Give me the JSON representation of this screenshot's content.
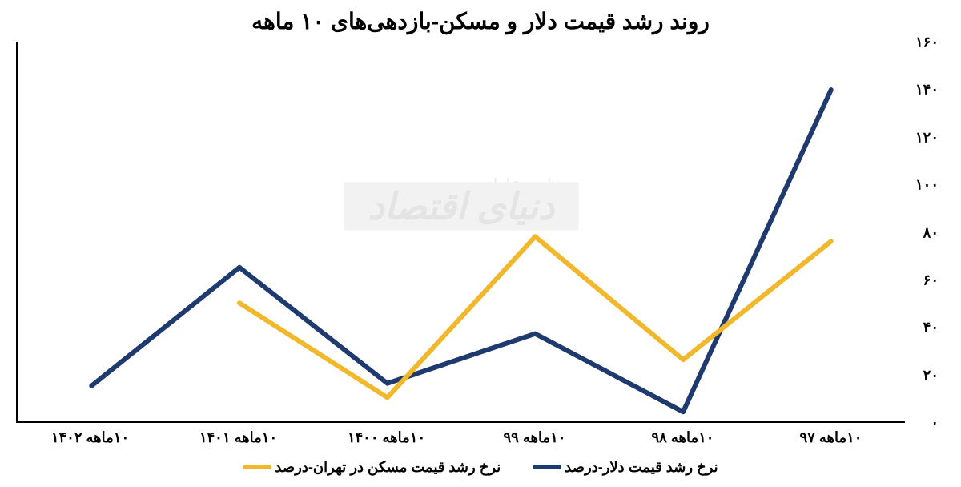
{
  "chart": {
    "type": "line",
    "title": "روند رشد قیمت دلار و مسکن-بازدهی‌های ۱۰ ماهه",
    "title_fontsize": 28,
    "background_color": "#ffffff",
    "axis_color": "#000000",
    "line_width": 6,
    "ylim": [
      0,
      160
    ],
    "ytick_step": 20,
    "yticks": [
      "۰",
      "۲۰",
      "۴۰",
      "۶۰",
      "۸۰",
      "۱۰۰",
      "۱۲۰",
      "۱۴۰",
      "۱۶۰"
    ],
    "label_fontsize": 18,
    "categories": [
      "۱۰ماهه ۹۷",
      "۱۰ماهه ۹۸",
      "۱۰ماهه ۹۹",
      "۱۰ماهه ۱۴۰۰",
      "۱۰ماهه ۱۴۰۱",
      "۱۰ماهه ۱۴۰۲"
    ],
    "series": [
      {
        "key": "dollar",
        "label": "نرخ رشد قیمت دلار-درصد",
        "color": "#1f3a6e",
        "values": [
          140,
          4,
          37,
          16,
          65,
          15
        ]
      },
      {
        "key": "housing",
        "label": "نرخ رشد قیمت مسکن در تهران-درصد",
        "color": "#f1b82d",
        "values": [
          76,
          26,
          78,
          10,
          50,
          null
        ]
      }
    ],
    "watermark": {
      "main": "دنیای اقتصاد",
      "small": "روزنامه صبح ایران"
    }
  }
}
